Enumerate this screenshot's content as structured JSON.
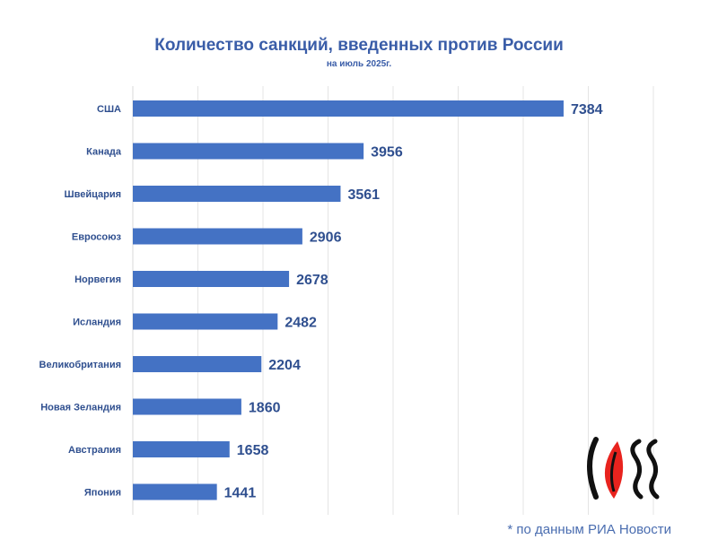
{
  "chart_data": {
    "type": "bar",
    "orientation": "horizontal",
    "title": "Количество санкций, введенных против России",
    "subtitle": "на июль 2025г.",
    "categories": [
      "США",
      "Канада",
      "Швейцария",
      "Евросоюз",
      "Норвегия",
      "Исландия",
      "Великобритания",
      "Новая Зеландия",
      "Австралия",
      "Япония"
    ],
    "values": [
      7384,
      3956,
      3561,
      2906,
      2678,
      2482,
      2204,
      1860,
      1658,
      1441
    ],
    "data_labels": [
      "7384",
      "3956",
      "3561",
      "2906",
      "2678",
      "2482",
      "2204",
      "1860",
      "1658",
      "1441"
    ],
    "xlim": [
      0,
      10000
    ],
    "grid": true,
    "bar_color": "#4472c4",
    "label_color": "#2f4f8f"
  },
  "footer": {
    "source": "* по данным РИА Новости"
  },
  "logo": {
    "name": "cross-logo-icon",
    "color": "#e8231e"
  }
}
